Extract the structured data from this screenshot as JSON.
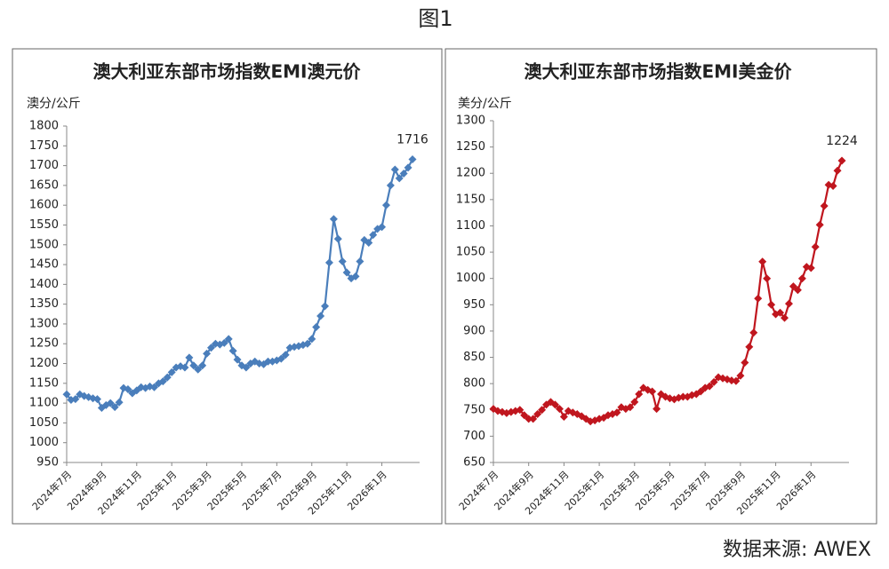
{
  "title": "图1",
  "source": "数据来源: AWEX",
  "chart_data": [
    {
      "type": "line",
      "title": "澳大利亚东部市场指数EMI澳元价",
      "y_label": "澳分/公斤",
      "categories": [
        "2024年7月",
        null,
        null,
        null,
        null,
        null,
        null,
        null,
        "2024年9月",
        null,
        null,
        null,
        null,
        null,
        null,
        null,
        "2024年11月",
        null,
        null,
        null,
        null,
        null,
        null,
        null,
        "2025年1月",
        null,
        null,
        null,
        null,
        null,
        null,
        null,
        "2025年3月",
        null,
        null,
        null,
        null,
        null,
        null,
        null,
        "2025年5月",
        null,
        null,
        null,
        null,
        null,
        null,
        null,
        "2025年7月",
        null,
        null,
        null,
        null,
        null,
        null,
        null,
        "2025年9月",
        null,
        null,
        null,
        null,
        null,
        null,
        null,
        "2025年11月",
        null,
        null,
        null,
        null,
        null,
        null,
        null,
        "2026年1月",
        null,
        null,
        null,
        null,
        null,
        null,
        null
      ],
      "series": [
        {
          "color": "#4a7ebb",
          "values": [
            1122,
            1108,
            1110,
            1122,
            1118,
            1115,
            1112,
            1110,
            1088,
            1095,
            1100,
            1090,
            1102,
            1138,
            1135,
            1125,
            1132,
            1140,
            1138,
            1142,
            1140,
            1150,
            1155,
            1165,
            1178,
            1190,
            1193,
            1190,
            1215,
            1195,
            1185,
            1195,
            1225,
            1240,
            1250,
            1248,
            1252,
            1262,
            1232,
            1210,
            1195,
            1190,
            1200,
            1205,
            1200,
            1198,
            1205,
            1205,
            1208,
            1212,
            1222,
            1240,
            1242,
            1244,
            1247,
            1250,
            1262,
            1292,
            1320,
            1345,
            1455,
            1565,
            1515,
            1458,
            1430,
            1415,
            1420,
            1458,
            1512,
            1505,
            1525,
            1540,
            1545,
            1600,
            1650,
            1690,
            1668,
            1680,
            1695,
            1716
          ]
        }
      ],
      "ylim": [
        950,
        1800
      ],
      "yticks": [
        950,
        1000,
        1050,
        1100,
        1150,
        1200,
        1250,
        1300,
        1350,
        1400,
        1450,
        1500,
        1550,
        1600,
        1650,
        1700,
        1750,
        1800
      ]
    },
    {
      "type": "line",
      "title": "澳大利亚东部市场指数EMI美金价",
      "y_label": "美分/公斤",
      "categories": [
        "2024年7月",
        null,
        null,
        null,
        null,
        null,
        null,
        null,
        "2024年9月",
        null,
        null,
        null,
        null,
        null,
        null,
        null,
        "2024年11月",
        null,
        null,
        null,
        null,
        null,
        null,
        null,
        "2025年1月",
        null,
        null,
        null,
        null,
        null,
        null,
        null,
        "2025年3月",
        null,
        null,
        null,
        null,
        null,
        null,
        null,
        "2025年5月",
        null,
        null,
        null,
        null,
        null,
        null,
        null,
        "2025年7月",
        null,
        null,
        null,
        null,
        null,
        null,
        null,
        "2025年9月",
        null,
        null,
        null,
        null,
        null,
        null,
        null,
        "2025年11月",
        null,
        null,
        null,
        null,
        null,
        null,
        null,
        "2026年1月",
        null,
        null,
        null,
        null,
        null,
        null,
        null
      ],
      "series": [
        {
          "color": "#c0161e",
          "values": [
            752,
            748,
            746,
            744,
            746,
            748,
            750,
            740,
            733,
            733,
            742,
            750,
            760,
            765,
            760,
            752,
            737,
            748,
            745,
            742,
            738,
            733,
            728,
            730,
            733,
            735,
            740,
            742,
            745,
            755,
            752,
            755,
            765,
            780,
            792,
            788,
            785,
            752,
            780,
            775,
            772,
            770,
            773,
            775,
            775,
            778,
            780,
            785,
            792,
            795,
            803,
            812,
            810,
            808,
            806,
            805,
            815,
            840,
            870,
            897,
            962,
            1032,
            1000,
            950,
            932,
            935,
            925,
            952,
            985,
            978,
            1000,
            1022,
            1020,
            1060,
            1102,
            1138,
            1178,
            1176,
            1205,
            1224
          ]
        }
      ],
      "ylim": [
        650,
        1300
      ],
      "yticks": [
        650,
        700,
        750,
        800,
        850,
        900,
        950,
        1000,
        1050,
        1100,
        1150,
        1200,
        1250,
        1300
      ]
    }
  ]
}
